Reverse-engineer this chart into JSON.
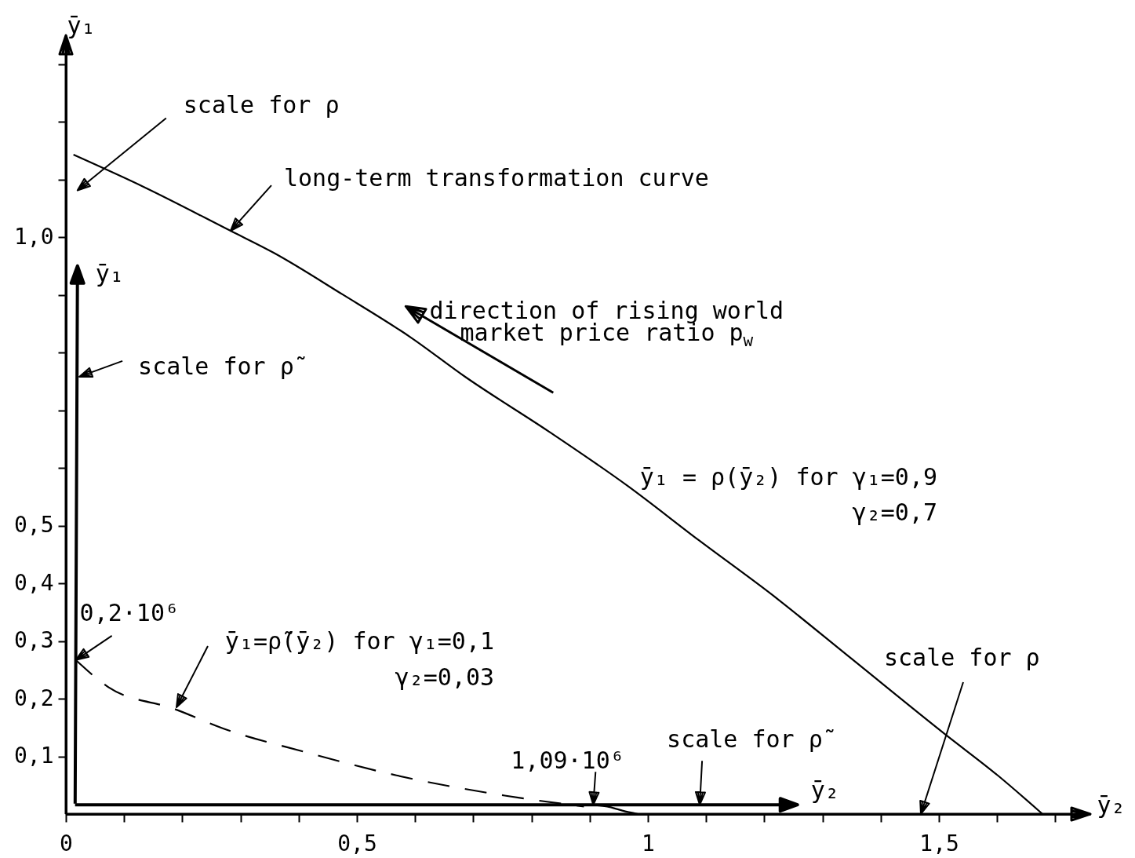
{
  "chart_data": {
    "type": "line",
    "xlabel": "ȳ₂",
    "ylabel": "ȳ₁",
    "xlim": [
      0,
      1.76
    ],
    "ylim": [
      0,
      1.35
    ],
    "xticks": [
      0,
      {
        "value": 0.1,
        "label": null
      },
      {
        "value": 0.2,
        "label": null
      },
      {
        "value": 0.3,
        "label": null
      },
      {
        "value": 0.4,
        "label": null
      },
      {
        "value": 0.5,
        "label": "0,5"
      },
      {
        "value": 0.6,
        "label": null
      },
      {
        "value": 0.7,
        "label": null
      },
      {
        "value": 0.8,
        "label": null
      },
      {
        "value": 0.9,
        "label": null
      },
      1,
      {
        "value": 1.1,
        "label": null
      },
      {
        "value": 1.2,
        "label": null
      },
      {
        "value": 1.3,
        "label": null
      },
      {
        "value": 1.4,
        "label": null
      },
      {
        "value": 1.5,
        "label": "1,5"
      },
      {
        "value": 1.6,
        "label": null
      },
      {
        "value": 1.7,
        "label": null
      }
    ],
    "yticks": [
      {
        "value": 0.1,
        "label": "0,1"
      },
      {
        "value": 0.2,
        "label": "0,2"
      },
      {
        "value": 0.3,
        "label": "0,3"
      },
      {
        "value": 0.4,
        "label": "0,4"
      },
      {
        "value": 0.5,
        "label": "0,5"
      },
      {
        "value": 0.6,
        "label": null
      },
      {
        "value": 0.7,
        "label": null
      },
      {
        "value": 0.8,
        "label": null
      },
      {
        "value": 0.9,
        "label": null
      },
      {
        "value": 1.0,
        "label": "1,0"
      },
      {
        "value": 1.1,
        "label": null
      },
      {
        "value": 1.2,
        "label": null
      },
      {
        "value": 1.3,
        "label": null
      }
    ],
    "series": [
      {
        "color": "#000000",
        "line_style": "solid",
        "x": [
          0.013,
          0.134,
          0.283,
          0.357,
          0.475,
          0.593,
          0.686,
          0.83,
          0.965,
          1.087,
          1.216,
          1.344,
          1.511,
          1.601,
          1.678
        ],
        "values": [
          1.143,
          1.087,
          1.011,
          0.973,
          0.901,
          0.826,
          0.758,
          0.663,
          0.569,
          0.475,
          0.378,
          0.274,
          0.138,
          0.067,
          0
        ]
      },
      {
        "color": "#000000",
        "line_style": "dashed",
        "x": [
          0.017,
          0.073,
          0.187,
          0.271,
          0.413,
          0.568,
          0.754,
          0.89
        ],
        "values": [
          0.267,
          0.22,
          0.182,
          0.148,
          0.107,
          0.067,
          0.032,
          0.013
        ]
      },
      {
        "color": "#000000",
        "line_style": "solid",
        "x": [
          0.9,
          0.93,
          0.956,
          0.983
        ],
        "values": [
          0.016,
          0.013,
          0.006,
          0
        ]
      }
    ],
    "annotations": [
      "scale for ρ",
      {
        "text": "long-term transformation curve",
        "x": 0.283,
        "y": 1.011
      },
      "ȳ₁",
      "direction of rising world\nmarket price ratio p$_{w}$",
      "scale for ρ̃",
      {
        "text": "ȳ₁ = ρ(ȳ₂) for γ₁=0,9\nγ₂=0,7",
        "x": 0.946,
        "y": 0.582
      },
      {
        "text": "0,2·10⁶",
        "x": 0.017,
        "y": 0.267
      },
      {
        "text": "ȳ₁=ρ̃(ȳ₂) for γ₁=0,1\nγ₂=0,03",
        "x": 0.19,
        "y": 0.185
      },
      "scale for ρ",
      "scale for ρ̃",
      {
        "text": "1,09·10⁶",
        "x": 0.906,
        "y": 0.016
      },
      "ȳ₂"
    ]
  }
}
